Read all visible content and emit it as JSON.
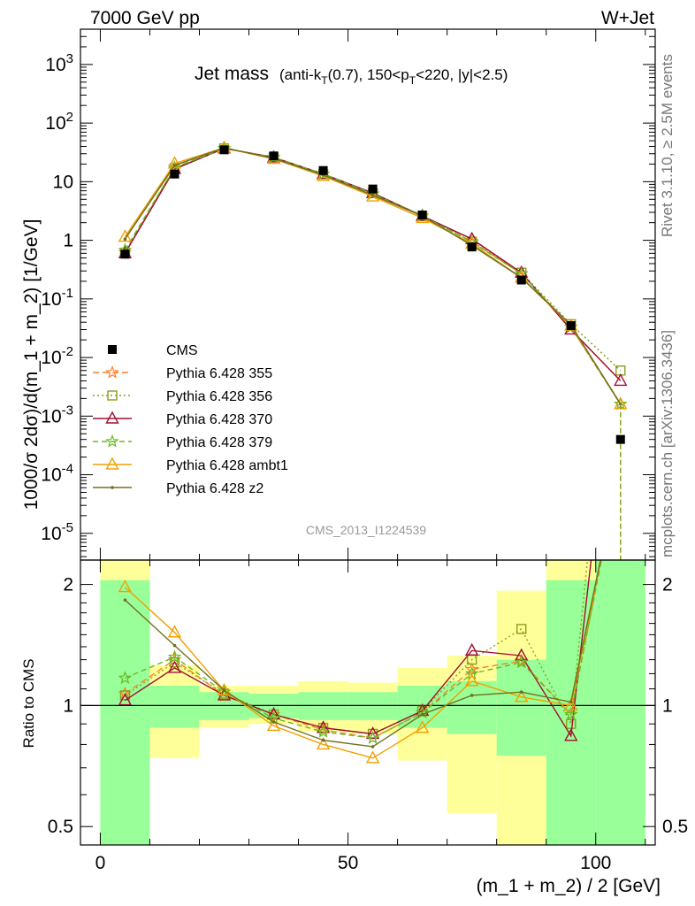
{
  "header": {
    "energy_label": "7000 GeV pp",
    "process_label": "W+Jet",
    "plot_title": "Jet mass",
    "plot_subtitle": "(anti-kT(0.7), 150<pT<220, |y|<2.5)",
    "rivet_label": "Rivet 3.1.10, ≥ 2.5M events",
    "mcplots_label": "mcplots.cern.ch [arXiv:1306.3436]",
    "analysis_id": "CMS_2013_I1224539"
  },
  "chart_data": {
    "type": "line",
    "title": "Jet mass (anti-kT(0.7), 150<pT<220, |y|<2.5)",
    "xlabel": "(m_1 + m_2) / 2 [GeV]",
    "ylabel": "1000/σ 2dσ)/d(m_1 + m_2) [1/GeV]",
    "ratio_ylabel": "Ratio to CMS",
    "x": [
      5,
      15,
      25,
      35,
      45,
      55,
      65,
      75,
      85,
      95,
      105
    ],
    "bin_edges": [
      0,
      10,
      20,
      30,
      40,
      50,
      60,
      70,
      80,
      90,
      100,
      110
    ],
    "xlim": [
      -4,
      112
    ],
    "ylim": [
      3.5e-06,
      4000
    ],
    "yscale": "log",
    "ratio_ylim": [
      0.45,
      2.3
    ],
    "ratio_yscale": "log",
    "x_ticks": [
      0,
      50,
      100
    ],
    "y_ticks": [
      {
        "value": 1000,
        "label": "10^3"
      },
      {
        "value": 100,
        "label": "10^2"
      },
      {
        "value": 10,
        "label": "10"
      },
      {
        "value": 1,
        "label": "1"
      },
      {
        "value": 0.1,
        "label": "10^-1"
      },
      {
        "value": 0.01,
        "label": "10^-2"
      },
      {
        "value": 0.001,
        "label": "10^-3"
      },
      {
        "value": 0.0001,
        "label": "10^-4"
      },
      {
        "value": 1e-05,
        "label": "10^-5"
      }
    ],
    "ratio_ticks": [
      0.5,
      1,
      2
    ],
    "data": {
      "name": "CMS",
      "values": [
        0.58,
        13.5,
        35,
        27.5,
        15.5,
        7.5,
        2.7,
        0.77,
        0.21,
        0.035,
        0.0004
      ],
      "color": "#000000"
    },
    "band_inner": [
      [
        0.35,
        2.05
      ],
      [
        0.88,
        1.12
      ],
      [
        0.92,
        1.08
      ],
      [
        0.93,
        1.07
      ],
      [
        0.92,
        1.08
      ],
      [
        0.92,
        1.08
      ],
      [
        0.88,
        1.12
      ],
      [
        0.85,
        1.15
      ],
      [
        0.75,
        1.3
      ],
      [
        0.35,
        2.05
      ],
      [
        0.35,
        2.3
      ]
    ],
    "band_outer": [
      [
        0.35,
        2.3
      ],
      [
        0.74,
        1.26
      ],
      [
        0.88,
        1.12
      ],
      [
        0.9,
        1.12
      ],
      [
        0.86,
        1.15
      ],
      [
        0.85,
        1.14
      ],
      [
        0.73,
        1.24
      ],
      [
        0.54,
        1.33
      ],
      [
        0.35,
        1.93
      ],
      [
        0.35,
        2.3
      ],
      [
        0.35,
        2.3
      ]
    ],
    "series": [
      {
        "name": "Pythia 6.428 355",
        "color": "#ff7f2a",
        "dash": "7,4",
        "marker": "star",
        "values": [
          0.62,
          17.5,
          37,
          26,
          13.5,
          6.2,
          2.6,
          0.95,
          0.27,
          0.033,
          0.0016
        ],
        "ratio": [
          1.07,
          1.3,
          1.06,
          0.95,
          0.87,
          0.83,
          0.96,
          1.23,
          1.29,
          0.95,
          4.0
        ]
      },
      {
        "name": "Pythia 6.428 356",
        "color": "#8da01a",
        "dash": "2,3",
        "marker": "square",
        "values": [
          0.61,
          17,
          37,
          26,
          13.5,
          6.4,
          2.6,
          0.95,
          0.28,
          0.037,
          0.006
        ],
        "ratio": [
          1.06,
          1.28,
          1.07,
          0.95,
          0.88,
          0.85,
          0.97,
          1.3,
          1.55,
          0.9,
          15
        ]
      },
      {
        "name": "Pythia 6.428 370",
        "color": "#a01030",
        "dash": "",
        "marker": "triangle",
        "values": [
          0.6,
          16.5,
          37,
          26,
          13.5,
          6.4,
          2.6,
          1.05,
          0.28,
          0.03,
          0.004
        ],
        "ratio": [
          1.03,
          1.24,
          1.06,
          0.95,
          0.88,
          0.85,
          0.97,
          1.37,
          1.33,
          0.84,
          10
        ]
      },
      {
        "name": "Pythia 6.428 379",
        "color": "#66bb22",
        "dash": "6,4",
        "marker": "star",
        "values": [
          0.68,
          17.5,
          37,
          26,
          13.5,
          6.2,
          2.6,
          0.93,
          0.27,
          0.033,
          0.0016
        ],
        "ratio": [
          1.17,
          1.32,
          1.08,
          0.93,
          0.86,
          0.83,
          0.96,
          1.2,
          1.28,
          0.95,
          4.0
        ]
      },
      {
        "name": "Pythia 6.428 ambt1",
        "color": "#f0a000",
        "dash": "",
        "marker": "triangle",
        "values": [
          1.15,
          20.5,
          38,
          24.5,
          12.5,
          5.6,
          2.4,
          0.88,
          0.23,
          0.035,
          0.0016
        ],
        "ratio": [
          1.97,
          1.52,
          1.09,
          0.89,
          0.8,
          0.74,
          0.88,
          1.15,
          1.05,
          1.0,
          4.0
        ]
      },
      {
        "name": "Pythia 6.428 z2",
        "color": "#707020",
        "dash": "",
        "marker": "dot",
        "values": [
          1.05,
          19,
          38,
          25,
          13,
          5.9,
          2.6,
          0.82,
          0.23,
          0.036,
          0.0016
        ],
        "ratio": [
          1.83,
          1.41,
          1.09,
          0.91,
          0.82,
          0.79,
          0.95,
          1.06,
          1.08,
          1.02,
          4.0
        ]
      }
    ]
  }
}
